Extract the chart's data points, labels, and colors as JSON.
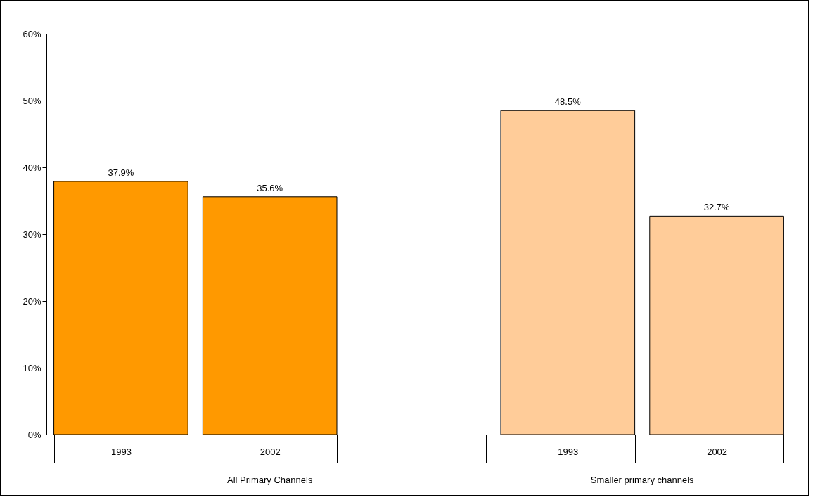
{
  "chart_data": {
    "type": "bar",
    "categories": [
      "1993",
      "2002",
      null,
      "1993",
      "2002"
    ],
    "values": [
      37.9,
      35.6,
      null,
      48.5,
      32.7
    ],
    "value_labels": [
      "37.9%",
      "35.6%",
      null,
      "48.5%",
      "32.7%"
    ],
    "colors": [
      "#ff9900",
      "#ff9900",
      "#ffcc99",
      "#ffcc99",
      "#ffcc99"
    ],
    "ylim": [
      0,
      60
    ],
    "yticks": [
      {
        "value": 0,
        "label": "0%"
      },
      {
        "value": 10,
        "label": "10%"
      },
      {
        "value": 20,
        "label": "20%"
      },
      {
        "value": 30,
        "label": "30%"
      },
      {
        "value": 40,
        "label": "40%"
      },
      {
        "value": 50,
        "label": "50%"
      },
      {
        "value": 60,
        "label": "60%"
      }
    ],
    "grid": false,
    "legend": false,
    "annotations": [
      "All Primary Channels",
      "Smaller primary channels"
    ]
  }
}
